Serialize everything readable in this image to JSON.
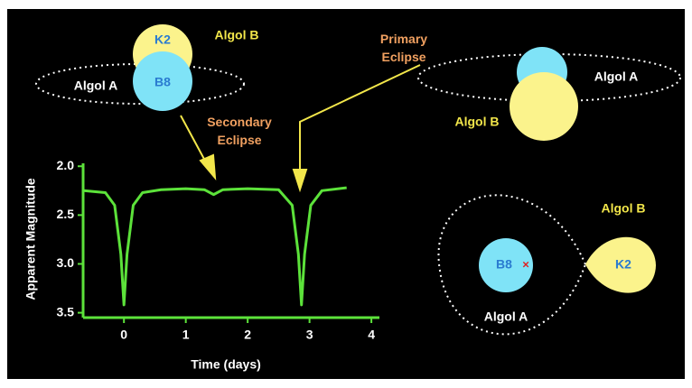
{
  "chart_data": {
    "type": "line",
    "x_label": "Time (days)",
    "y_label": "Apparent Magnitude",
    "x": [
      -0.65,
      -0.3,
      -0.15,
      -0.05,
      0,
      0.05,
      0.15,
      0.3,
      0.6,
      1.0,
      1.3,
      1.45,
      1.6,
      2.0,
      2.5,
      2.72,
      2.82,
      2.87,
      2.92,
      3.02,
      3.2,
      3.6
    ],
    "values": [
      2.25,
      2.27,
      2.4,
      2.9,
      3.42,
      2.9,
      2.4,
      2.27,
      2.24,
      2.23,
      2.24,
      2.29,
      2.24,
      2.23,
      2.24,
      2.4,
      2.9,
      3.42,
      2.9,
      2.4,
      2.25,
      2.22
    ],
    "color": "#5ce23a",
    "xlim": [
      -0.66,
      4.13
    ],
    "ylim": [
      3.55,
      1.97
    ],
    "xticks": [
      0,
      1,
      2,
      3,
      4
    ],
    "yticks": [
      {
        "value": 2,
        "label": "2.0"
      },
      2.5,
      {
        "value": 3,
        "label": "3.0"
      },
      3.5
    ],
    "annotations": [
      "Algol B",
      "K2",
      "Algol A",
      "B8",
      "Secondary Eclipse",
      "Primary Eclipse",
      "Algol A",
      "Algol B",
      "Algol B",
      "B8",
      "K2",
      "Algol A"
    ]
  }
}
